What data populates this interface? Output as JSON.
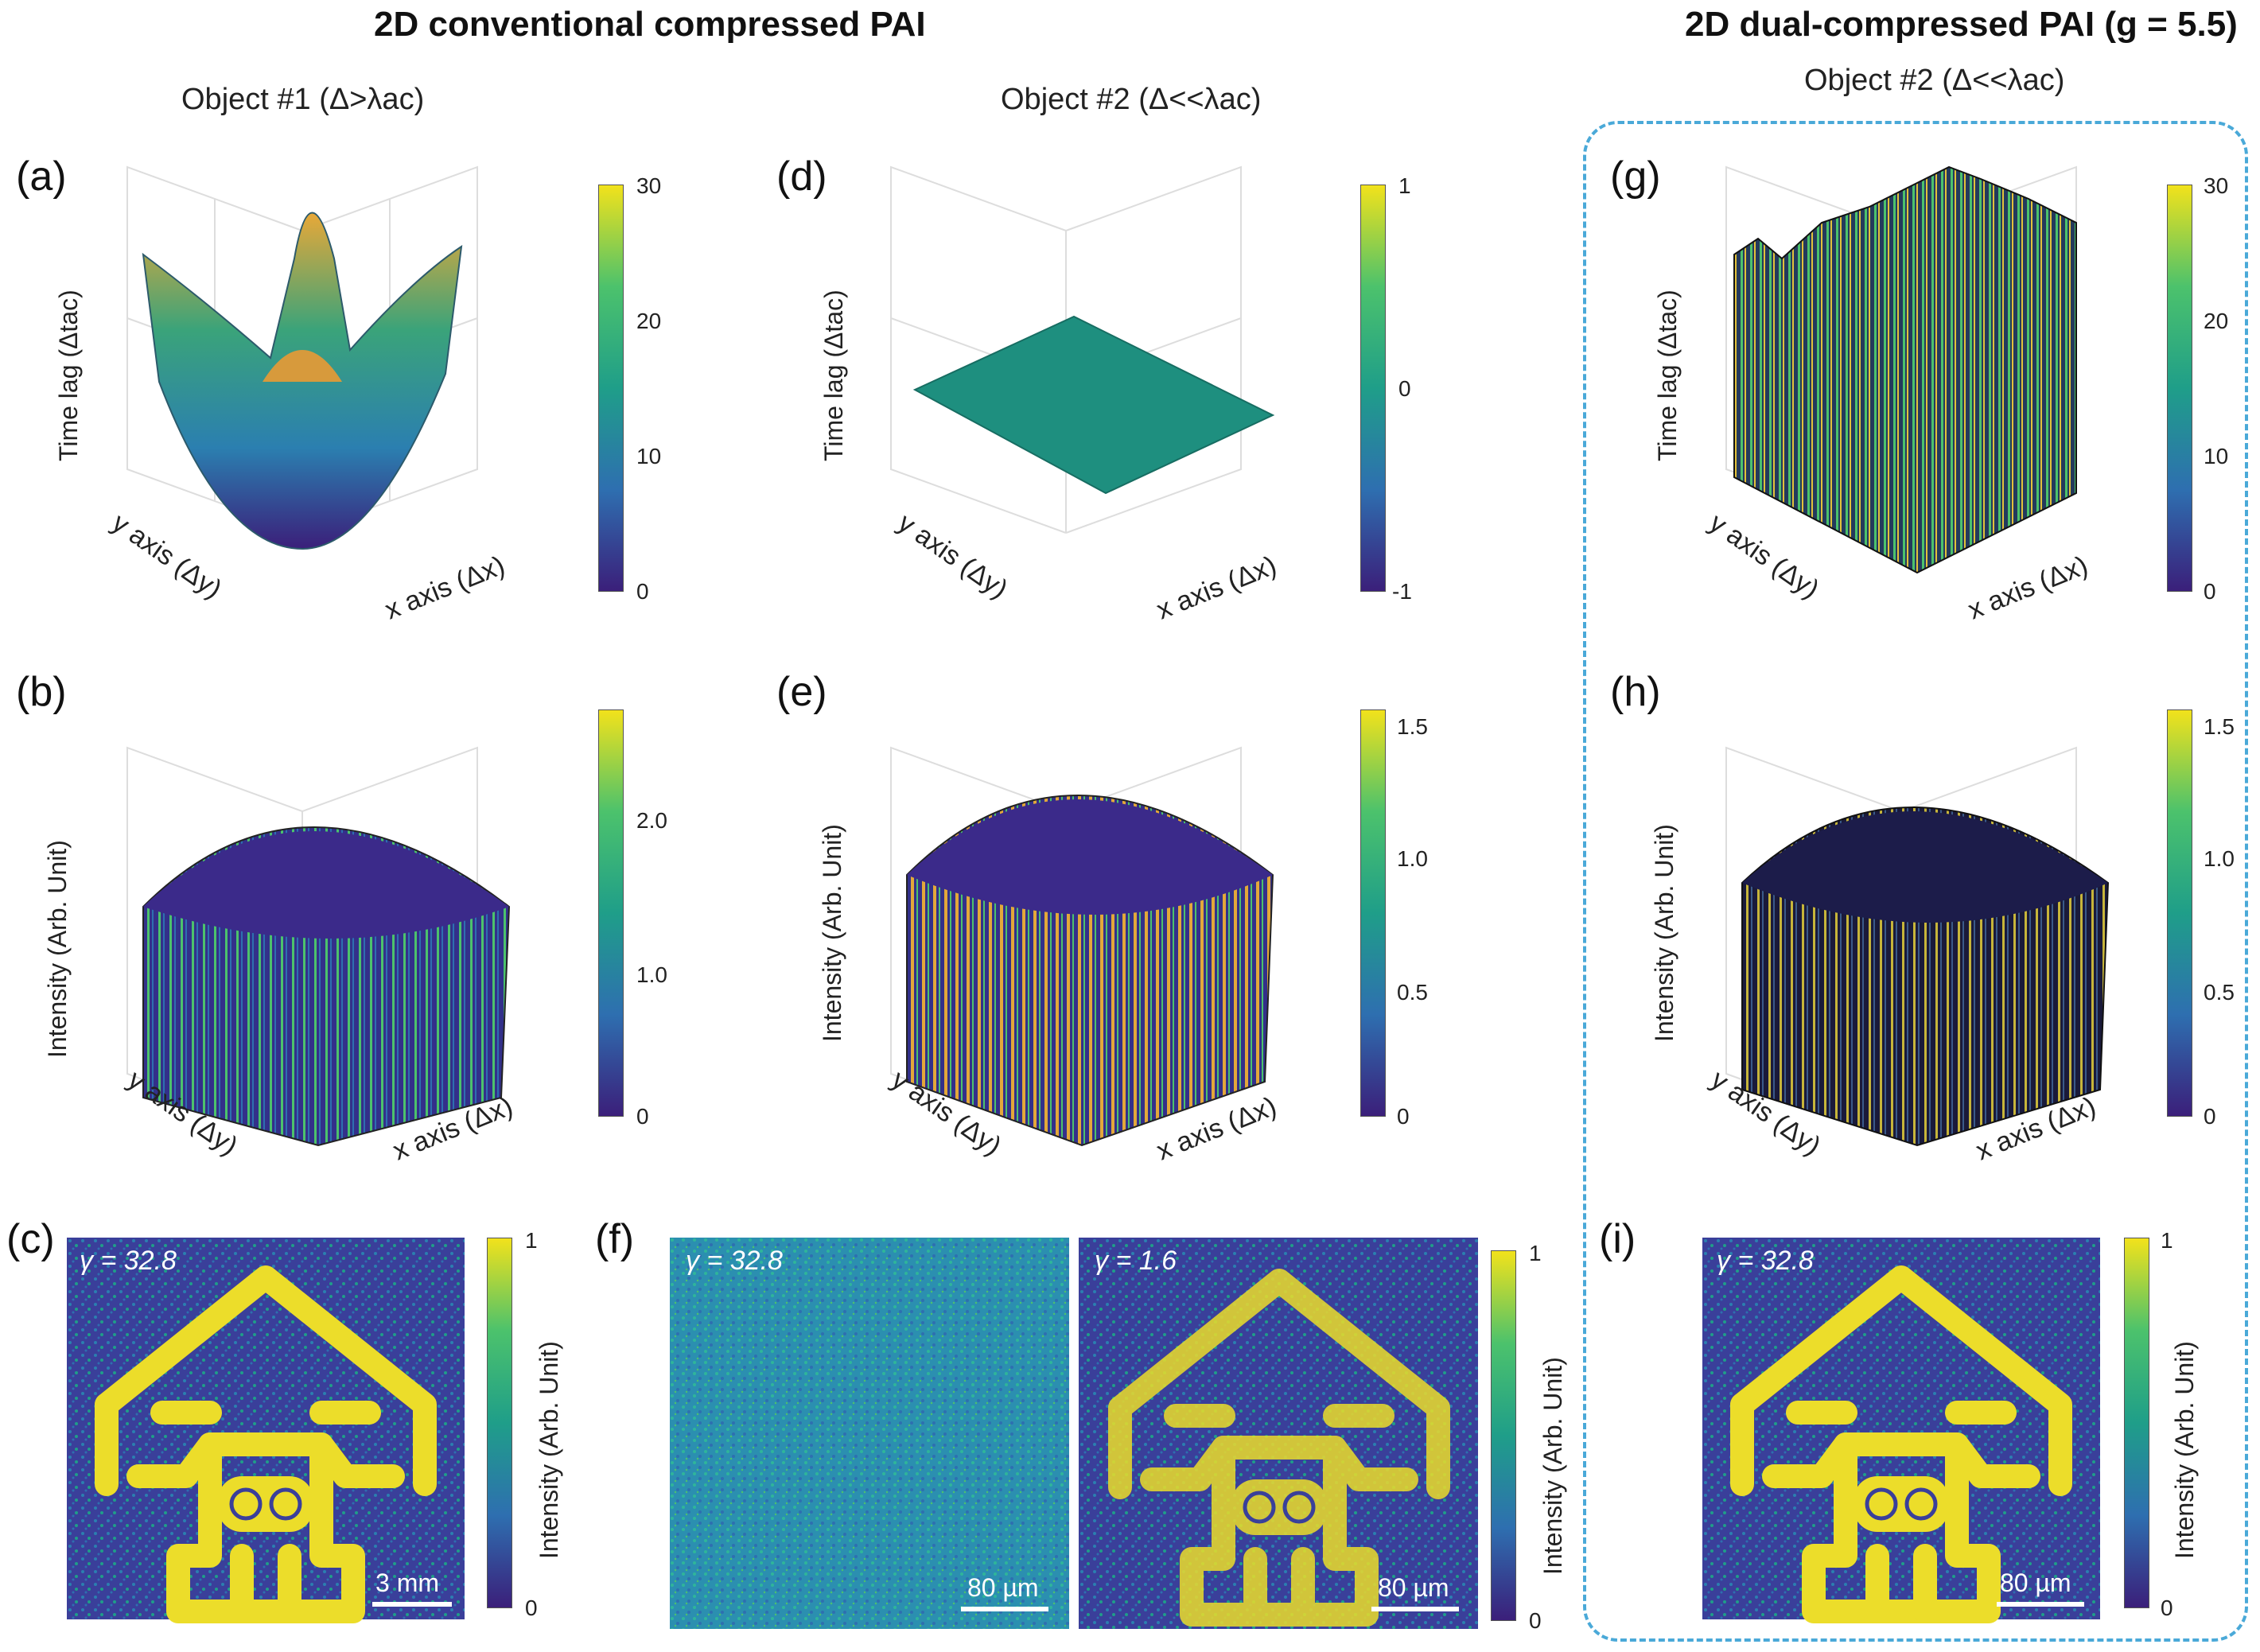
{
  "headings": {
    "left": "2D conventional compressed PAI",
    "right": "2D dual-compressed PAI (g = 5.5)"
  },
  "subtitles": {
    "object1": "Object #1 (Δ>λac)",
    "object2_mid": "Object #2 (Δ<<λac)",
    "object2_right": "Object #2 (Δ<<λac)"
  },
  "panels": {
    "a": "(a)",
    "b": "(b)",
    "c": "(c)",
    "d": "(d)",
    "e": "(e)",
    "f": "(f)",
    "g": "(g)",
    "h": "(h)",
    "i": "(i)"
  },
  "axes": {
    "time_lag": "Time lag (Δtac)",
    "intensity": "Intensity (Arb. Unit)",
    "y_axis": "y axis (Δy)",
    "x_axis": "x axis (Δx)"
  },
  "colorbars": {
    "a": [
      "30",
      "20",
      "10",
      "0"
    ],
    "d": [
      "1",
      "0",
      "-1"
    ],
    "g": [
      "30",
      "20",
      "10",
      "0"
    ],
    "b": [
      "2.0",
      "1.0",
      "0"
    ],
    "e": [
      "1.5",
      "1.0",
      "0.5",
      "0"
    ],
    "h": [
      "1.5",
      "1.0",
      "0.5",
      "0"
    ],
    "image": [
      "1",
      "0"
    ],
    "image_label": "Intensity (Arb. Unit)"
  },
  "images": {
    "c": {
      "gamma": "γ = 32.8",
      "scale": "3 mm"
    },
    "f1": {
      "gamma": "γ = 32.8",
      "scale": "80 µm"
    },
    "f2": {
      "gamma": "γ = 1.6",
      "scale": "80 µm"
    },
    "i": {
      "gamma": "γ = 32.8",
      "scale": "80 µm"
    }
  },
  "colors": {
    "viridis_dark": "#3b1f7a",
    "viridis_blue": "#2e6fb0",
    "viridis_teal": "#1f9e89",
    "viridis_green": "#4cc26c",
    "viridis_yellow": "#f2e21b",
    "dash": "#4aa9d8"
  }
}
